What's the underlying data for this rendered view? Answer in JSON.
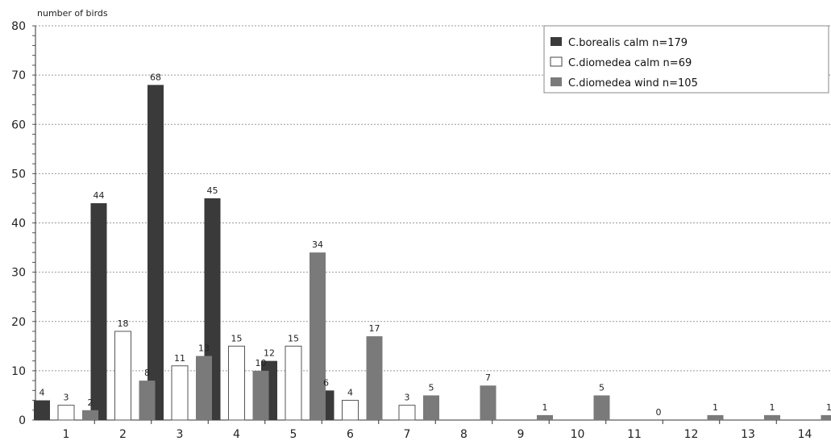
{
  "chart_data": {
    "type": "bar",
    "title": "",
    "ylabel": "number of birds",
    "xlabel": "",
    "ylim": [
      0,
      80
    ],
    "yticks": [
      0,
      10,
      20,
      30,
      40,
      50,
      60,
      70,
      80
    ],
    "grid": true,
    "legend_position": "top-right",
    "categories": [
      "1",
      "2",
      "3",
      "4",
      "5",
      "6",
      "7",
      "8",
      "9",
      "10",
      "11",
      "12",
      "13",
      "14"
    ],
    "series": [
      {
        "name": "C.borealis calm n=179",
        "color": "#3a3a3a",
        "values": [
          4,
          44,
          68,
          45,
          12,
          6,
          null,
          null,
          null,
          null,
          null,
          null,
          null,
          null
        ],
        "labels": [
          "4",
          "44",
          "68",
          "45",
          "12",
          "6",
          "",
          "",
          "",
          "",
          "",
          "",
          "",
          ""
        ]
      },
      {
        "name": "C.diomedea calm n=69",
        "color": "#ffffff",
        "values": [
          3,
          18,
          11,
          15,
          15,
          4,
          3,
          null,
          null,
          null,
          null,
          null,
          null,
          null
        ],
        "labels": [
          "3",
          "18",
          "11",
          "15",
          "15",
          "4",
          "3",
          "",
          "",
          "",
          "",
          "",
          "",
          ""
        ]
      },
      {
        "name": "C.diomedea wind n=105",
        "color": "#7a7a7a",
        "values": [
          2,
          8,
          13,
          10,
          34,
          17,
          5,
          7,
          1,
          5,
          0,
          1,
          1,
          1
        ],
        "labels": [
          "2",
          "8",
          "13",
          "10",
          "34",
          "17",
          "5",
          "7",
          "1",
          "5",
          "0",
          "1",
          "1",
          "1"
        ]
      }
    ]
  }
}
